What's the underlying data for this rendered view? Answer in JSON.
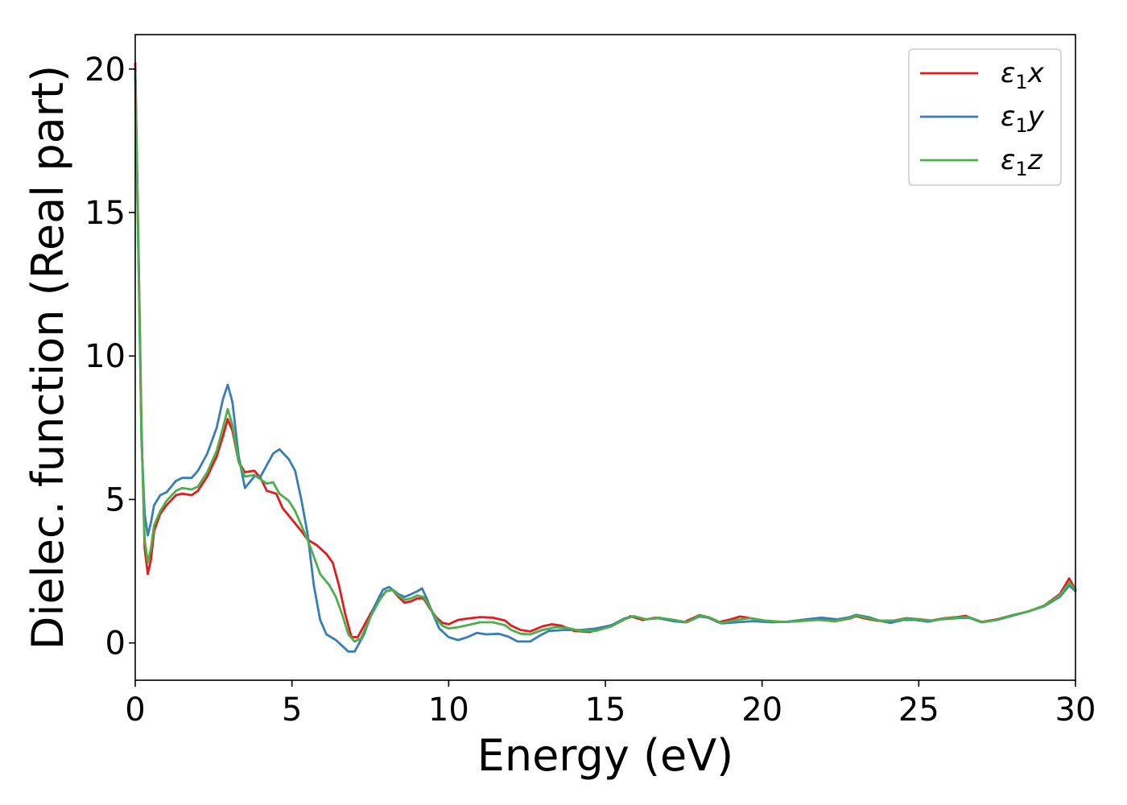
{
  "chart_data": {
    "type": "line",
    "xlabel": "Energy (eV)",
    "ylabel": "Dielec. function (Real part)",
    "xlim": [
      0,
      30
    ],
    "ylim": [
      -1.3,
      21.2
    ],
    "xticks": [
      0,
      5,
      10,
      15,
      20,
      25,
      30
    ],
    "yticks": [
      0,
      5,
      10,
      15,
      20
    ],
    "grid": false,
    "legend_position": "top-right",
    "series": [
      {
        "name": "ε1x",
        "label_base": "ε",
        "label_sub": "1",
        "label_suffix": "x",
        "color": "#e41a1c",
        "points": [
          [
            0.0,
            20.2
          ],
          [
            0.1,
            14.0
          ],
          [
            0.2,
            7.5
          ],
          [
            0.3,
            3.3
          ],
          [
            0.4,
            2.4
          ],
          [
            0.5,
            2.9
          ],
          [
            0.6,
            3.9
          ],
          [
            0.8,
            4.5
          ],
          [
            1.0,
            4.8
          ],
          [
            1.3,
            5.15
          ],
          [
            1.5,
            5.2
          ],
          [
            1.8,
            5.15
          ],
          [
            2.0,
            5.3
          ],
          [
            2.3,
            5.8
          ],
          [
            2.6,
            6.5
          ],
          [
            2.8,
            7.2
          ],
          [
            2.95,
            7.8
          ],
          [
            3.1,
            7.4
          ],
          [
            3.3,
            6.3
          ],
          [
            3.5,
            5.95
          ],
          [
            3.8,
            6.0
          ],
          [
            4.0,
            5.75
          ],
          [
            4.2,
            5.3
          ],
          [
            4.5,
            5.2
          ],
          [
            4.7,
            4.7
          ],
          [
            5.0,
            4.3
          ],
          [
            5.3,
            3.9
          ],
          [
            5.5,
            3.6
          ],
          [
            5.8,
            3.4
          ],
          [
            6.1,
            3.1
          ],
          [
            6.3,
            2.8
          ],
          [
            6.5,
            2.0
          ],
          [
            6.7,
            1.0
          ],
          [
            6.9,
            0.2
          ],
          [
            7.1,
            0.2
          ],
          [
            7.4,
            0.8
          ],
          [
            7.7,
            1.4
          ],
          [
            8.0,
            1.8
          ],
          [
            8.2,
            1.85
          ],
          [
            8.4,
            1.6
          ],
          [
            8.6,
            1.4
          ],
          [
            8.8,
            1.45
          ],
          [
            9.0,
            1.55
          ],
          [
            9.2,
            1.55
          ],
          [
            9.4,
            1.2
          ],
          [
            9.6,
            0.9
          ],
          [
            9.8,
            0.7
          ],
          [
            10.0,
            0.65
          ],
          [
            10.3,
            0.8
          ],
          [
            10.6,
            0.85
          ],
          [
            11.0,
            0.9
          ],
          [
            11.4,
            0.88
          ],
          [
            11.8,
            0.78
          ],
          [
            12.0,
            0.6
          ],
          [
            12.3,
            0.45
          ],
          [
            12.6,
            0.4
          ],
          [
            13.0,
            0.58
          ],
          [
            13.3,
            0.65
          ],
          [
            13.6,
            0.6
          ],
          [
            14.0,
            0.42
          ],
          [
            14.5,
            0.38
          ],
          [
            15.0,
            0.55
          ],
          [
            15.4,
            0.7
          ],
          [
            15.8,
            0.93
          ],
          [
            16.2,
            0.8
          ],
          [
            16.6,
            0.88
          ],
          [
            17.0,
            0.83
          ],
          [
            17.5,
            0.72
          ],
          [
            18.0,
            0.97
          ],
          [
            18.2,
            0.92
          ],
          [
            18.6,
            0.72
          ],
          [
            19.0,
            0.82
          ],
          [
            19.3,
            0.92
          ],
          [
            19.7,
            0.85
          ],
          [
            20.2,
            0.75
          ],
          [
            20.8,
            0.73
          ],
          [
            21.3,
            0.77
          ],
          [
            21.8,
            0.82
          ],
          [
            22.3,
            0.75
          ],
          [
            22.8,
            0.85
          ],
          [
            23.0,
            0.93
          ],
          [
            23.3,
            0.85
          ],
          [
            23.7,
            0.77
          ],
          [
            24.2,
            0.78
          ],
          [
            24.6,
            0.86
          ],
          [
            25.0,
            0.83
          ],
          [
            25.4,
            0.78
          ],
          [
            25.8,
            0.86
          ],
          [
            26.2,
            0.9
          ],
          [
            26.5,
            0.94
          ],
          [
            27.0,
            0.73
          ],
          [
            27.5,
            0.82
          ],
          [
            28.0,
            0.97
          ],
          [
            28.5,
            1.1
          ],
          [
            29.0,
            1.3
          ],
          [
            29.5,
            1.7
          ],
          [
            29.8,
            2.25
          ],
          [
            30.0,
            1.85
          ]
        ]
      },
      {
        "name": "ε1y",
        "label_base": "ε",
        "label_sub": "1",
        "label_suffix": "y",
        "color": "#377eb8",
        "points": [
          [
            0.0,
            19.8
          ],
          [
            0.1,
            13.5
          ],
          [
            0.2,
            7.0
          ],
          [
            0.3,
            4.5
          ],
          [
            0.4,
            3.75
          ],
          [
            0.5,
            4.2
          ],
          [
            0.6,
            4.8
          ],
          [
            0.8,
            5.15
          ],
          [
            1.0,
            5.25
          ],
          [
            1.3,
            5.65
          ],
          [
            1.5,
            5.75
          ],
          [
            1.8,
            5.75
          ],
          [
            2.0,
            6.0
          ],
          [
            2.3,
            6.6
          ],
          [
            2.6,
            7.5
          ],
          [
            2.8,
            8.5
          ],
          [
            2.95,
            9.0
          ],
          [
            3.1,
            8.4
          ],
          [
            3.3,
            6.5
          ],
          [
            3.5,
            5.4
          ],
          [
            3.8,
            5.8
          ],
          [
            4.0,
            5.8
          ],
          [
            4.2,
            6.2
          ],
          [
            4.4,
            6.6
          ],
          [
            4.6,
            6.75
          ],
          [
            4.9,
            6.4
          ],
          [
            5.1,
            6.0
          ],
          [
            5.3,
            5.0
          ],
          [
            5.5,
            3.8
          ],
          [
            5.7,
            2.0
          ],
          [
            5.9,
            0.8
          ],
          [
            6.1,
            0.3
          ],
          [
            6.4,
            0.1
          ],
          [
            6.6,
            -0.1
          ],
          [
            6.8,
            -0.3
          ],
          [
            7.0,
            -0.3
          ],
          [
            7.3,
            0.3
          ],
          [
            7.6,
            1.2
          ],
          [
            7.9,
            1.85
          ],
          [
            8.1,
            1.95
          ],
          [
            8.4,
            1.7
          ],
          [
            8.6,
            1.6
          ],
          [
            8.8,
            1.7
          ],
          [
            9.0,
            1.8
          ],
          [
            9.15,
            1.9
          ],
          [
            9.3,
            1.55
          ],
          [
            9.5,
            1.0
          ],
          [
            9.7,
            0.5
          ],
          [
            10.0,
            0.2
          ],
          [
            10.3,
            0.1
          ],
          [
            10.6,
            0.2
          ],
          [
            10.9,
            0.35
          ],
          [
            11.2,
            0.3
          ],
          [
            11.6,
            0.32
          ],
          [
            11.9,
            0.22
          ],
          [
            12.2,
            0.05
          ],
          [
            12.6,
            0.05
          ],
          [
            12.9,
            0.25
          ],
          [
            13.2,
            0.42
          ],
          [
            13.7,
            0.45
          ],
          [
            14.2,
            0.45
          ],
          [
            14.7,
            0.5
          ],
          [
            15.2,
            0.62
          ],
          [
            15.6,
            0.85
          ],
          [
            15.9,
            0.93
          ],
          [
            16.3,
            0.82
          ],
          [
            16.7,
            0.86
          ],
          [
            17.2,
            0.75
          ],
          [
            17.6,
            0.72
          ],
          [
            18.0,
            0.92
          ],
          [
            18.3,
            0.88
          ],
          [
            18.7,
            0.68
          ],
          [
            19.2,
            0.72
          ],
          [
            19.7,
            0.76
          ],
          [
            20.3,
            0.72
          ],
          [
            20.8,
            0.74
          ],
          [
            21.4,
            0.82
          ],
          [
            21.9,
            0.88
          ],
          [
            22.4,
            0.82
          ],
          [
            22.8,
            0.9
          ],
          [
            23.0,
            0.98
          ],
          [
            23.4,
            0.9
          ],
          [
            23.8,
            0.76
          ],
          [
            24.1,
            0.7
          ],
          [
            24.5,
            0.8
          ],
          [
            24.9,
            0.8
          ],
          [
            25.3,
            0.74
          ],
          [
            25.7,
            0.82
          ],
          [
            26.2,
            0.86
          ],
          [
            26.6,
            0.88
          ],
          [
            27.0,
            0.72
          ],
          [
            27.5,
            0.8
          ],
          [
            28.0,
            0.95
          ],
          [
            28.5,
            1.1
          ],
          [
            29.0,
            1.28
          ],
          [
            29.5,
            1.6
          ],
          [
            29.8,
            2.0
          ],
          [
            30.0,
            1.8
          ]
        ]
      },
      {
        "name": "ε1z",
        "label_base": "ε",
        "label_sub": "1",
        "label_suffix": "z",
        "color": "#4daf4a",
        "points": [
          [
            0.0,
            19.9
          ],
          [
            0.1,
            13.7
          ],
          [
            0.2,
            7.2
          ],
          [
            0.3,
            3.6
          ],
          [
            0.4,
            2.8
          ],
          [
            0.5,
            3.3
          ],
          [
            0.6,
            4.1
          ],
          [
            0.8,
            4.6
          ],
          [
            1.0,
            4.95
          ],
          [
            1.3,
            5.3
          ],
          [
            1.5,
            5.4
          ],
          [
            1.8,
            5.35
          ],
          [
            2.0,
            5.45
          ],
          [
            2.3,
            5.95
          ],
          [
            2.6,
            6.7
          ],
          [
            2.8,
            7.5
          ],
          [
            2.95,
            8.15
          ],
          [
            3.1,
            7.6
          ],
          [
            3.3,
            6.3
          ],
          [
            3.5,
            5.8
          ],
          [
            3.8,
            5.85
          ],
          [
            4.0,
            5.7
          ],
          [
            4.2,
            5.55
          ],
          [
            4.4,
            5.6
          ],
          [
            4.6,
            5.2
          ],
          [
            4.9,
            4.95
          ],
          [
            5.1,
            4.6
          ],
          [
            5.3,
            4.1
          ],
          [
            5.5,
            3.6
          ],
          [
            5.7,
            3.0
          ],
          [
            5.9,
            2.4
          ],
          [
            6.2,
            2.0
          ],
          [
            6.4,
            1.6
          ],
          [
            6.6,
            1.0
          ],
          [
            6.8,
            0.3
          ],
          [
            7.0,
            0.05
          ],
          [
            7.2,
            0.15
          ],
          [
            7.5,
            0.9
          ],
          [
            7.8,
            1.5
          ],
          [
            8.0,
            1.8
          ],
          [
            8.2,
            1.85
          ],
          [
            8.4,
            1.65
          ],
          [
            8.6,
            1.5
          ],
          [
            8.8,
            1.55
          ],
          [
            9.0,
            1.65
          ],
          [
            9.2,
            1.6
          ],
          [
            9.4,
            1.25
          ],
          [
            9.6,
            0.85
          ],
          [
            9.8,
            0.6
          ],
          [
            10.0,
            0.5
          ],
          [
            10.3,
            0.55
          ],
          [
            10.6,
            0.62
          ],
          [
            11.0,
            0.72
          ],
          [
            11.4,
            0.72
          ],
          [
            11.8,
            0.62
          ],
          [
            12.0,
            0.45
          ],
          [
            12.3,
            0.32
          ],
          [
            12.6,
            0.3
          ],
          [
            13.0,
            0.45
          ],
          [
            13.4,
            0.55
          ],
          [
            13.8,
            0.52
          ],
          [
            14.2,
            0.42
          ],
          [
            14.7,
            0.42
          ],
          [
            15.2,
            0.58
          ],
          [
            15.6,
            0.82
          ],
          [
            15.9,
            0.93
          ],
          [
            16.3,
            0.82
          ],
          [
            16.7,
            0.88
          ],
          [
            17.2,
            0.8
          ],
          [
            17.6,
            0.72
          ],
          [
            18.0,
            0.95
          ],
          [
            18.3,
            0.9
          ],
          [
            18.7,
            0.7
          ],
          [
            19.2,
            0.8
          ],
          [
            19.6,
            0.86
          ],
          [
            20.1,
            0.78
          ],
          [
            20.7,
            0.73
          ],
          [
            21.3,
            0.77
          ],
          [
            21.8,
            0.8
          ],
          [
            22.3,
            0.76
          ],
          [
            22.8,
            0.86
          ],
          [
            23.0,
            0.95
          ],
          [
            23.4,
            0.86
          ],
          [
            23.8,
            0.76
          ],
          [
            24.2,
            0.78
          ],
          [
            24.6,
            0.84
          ],
          [
            25.0,
            0.82
          ],
          [
            25.4,
            0.77
          ],
          [
            25.8,
            0.85
          ],
          [
            26.2,
            0.88
          ],
          [
            26.6,
            0.9
          ],
          [
            27.0,
            0.72
          ],
          [
            27.5,
            0.8
          ],
          [
            28.0,
            0.97
          ],
          [
            28.5,
            1.1
          ],
          [
            29.0,
            1.3
          ],
          [
            29.5,
            1.65
          ],
          [
            29.8,
            2.1
          ],
          [
            30.0,
            1.85
          ]
        ]
      }
    ]
  }
}
